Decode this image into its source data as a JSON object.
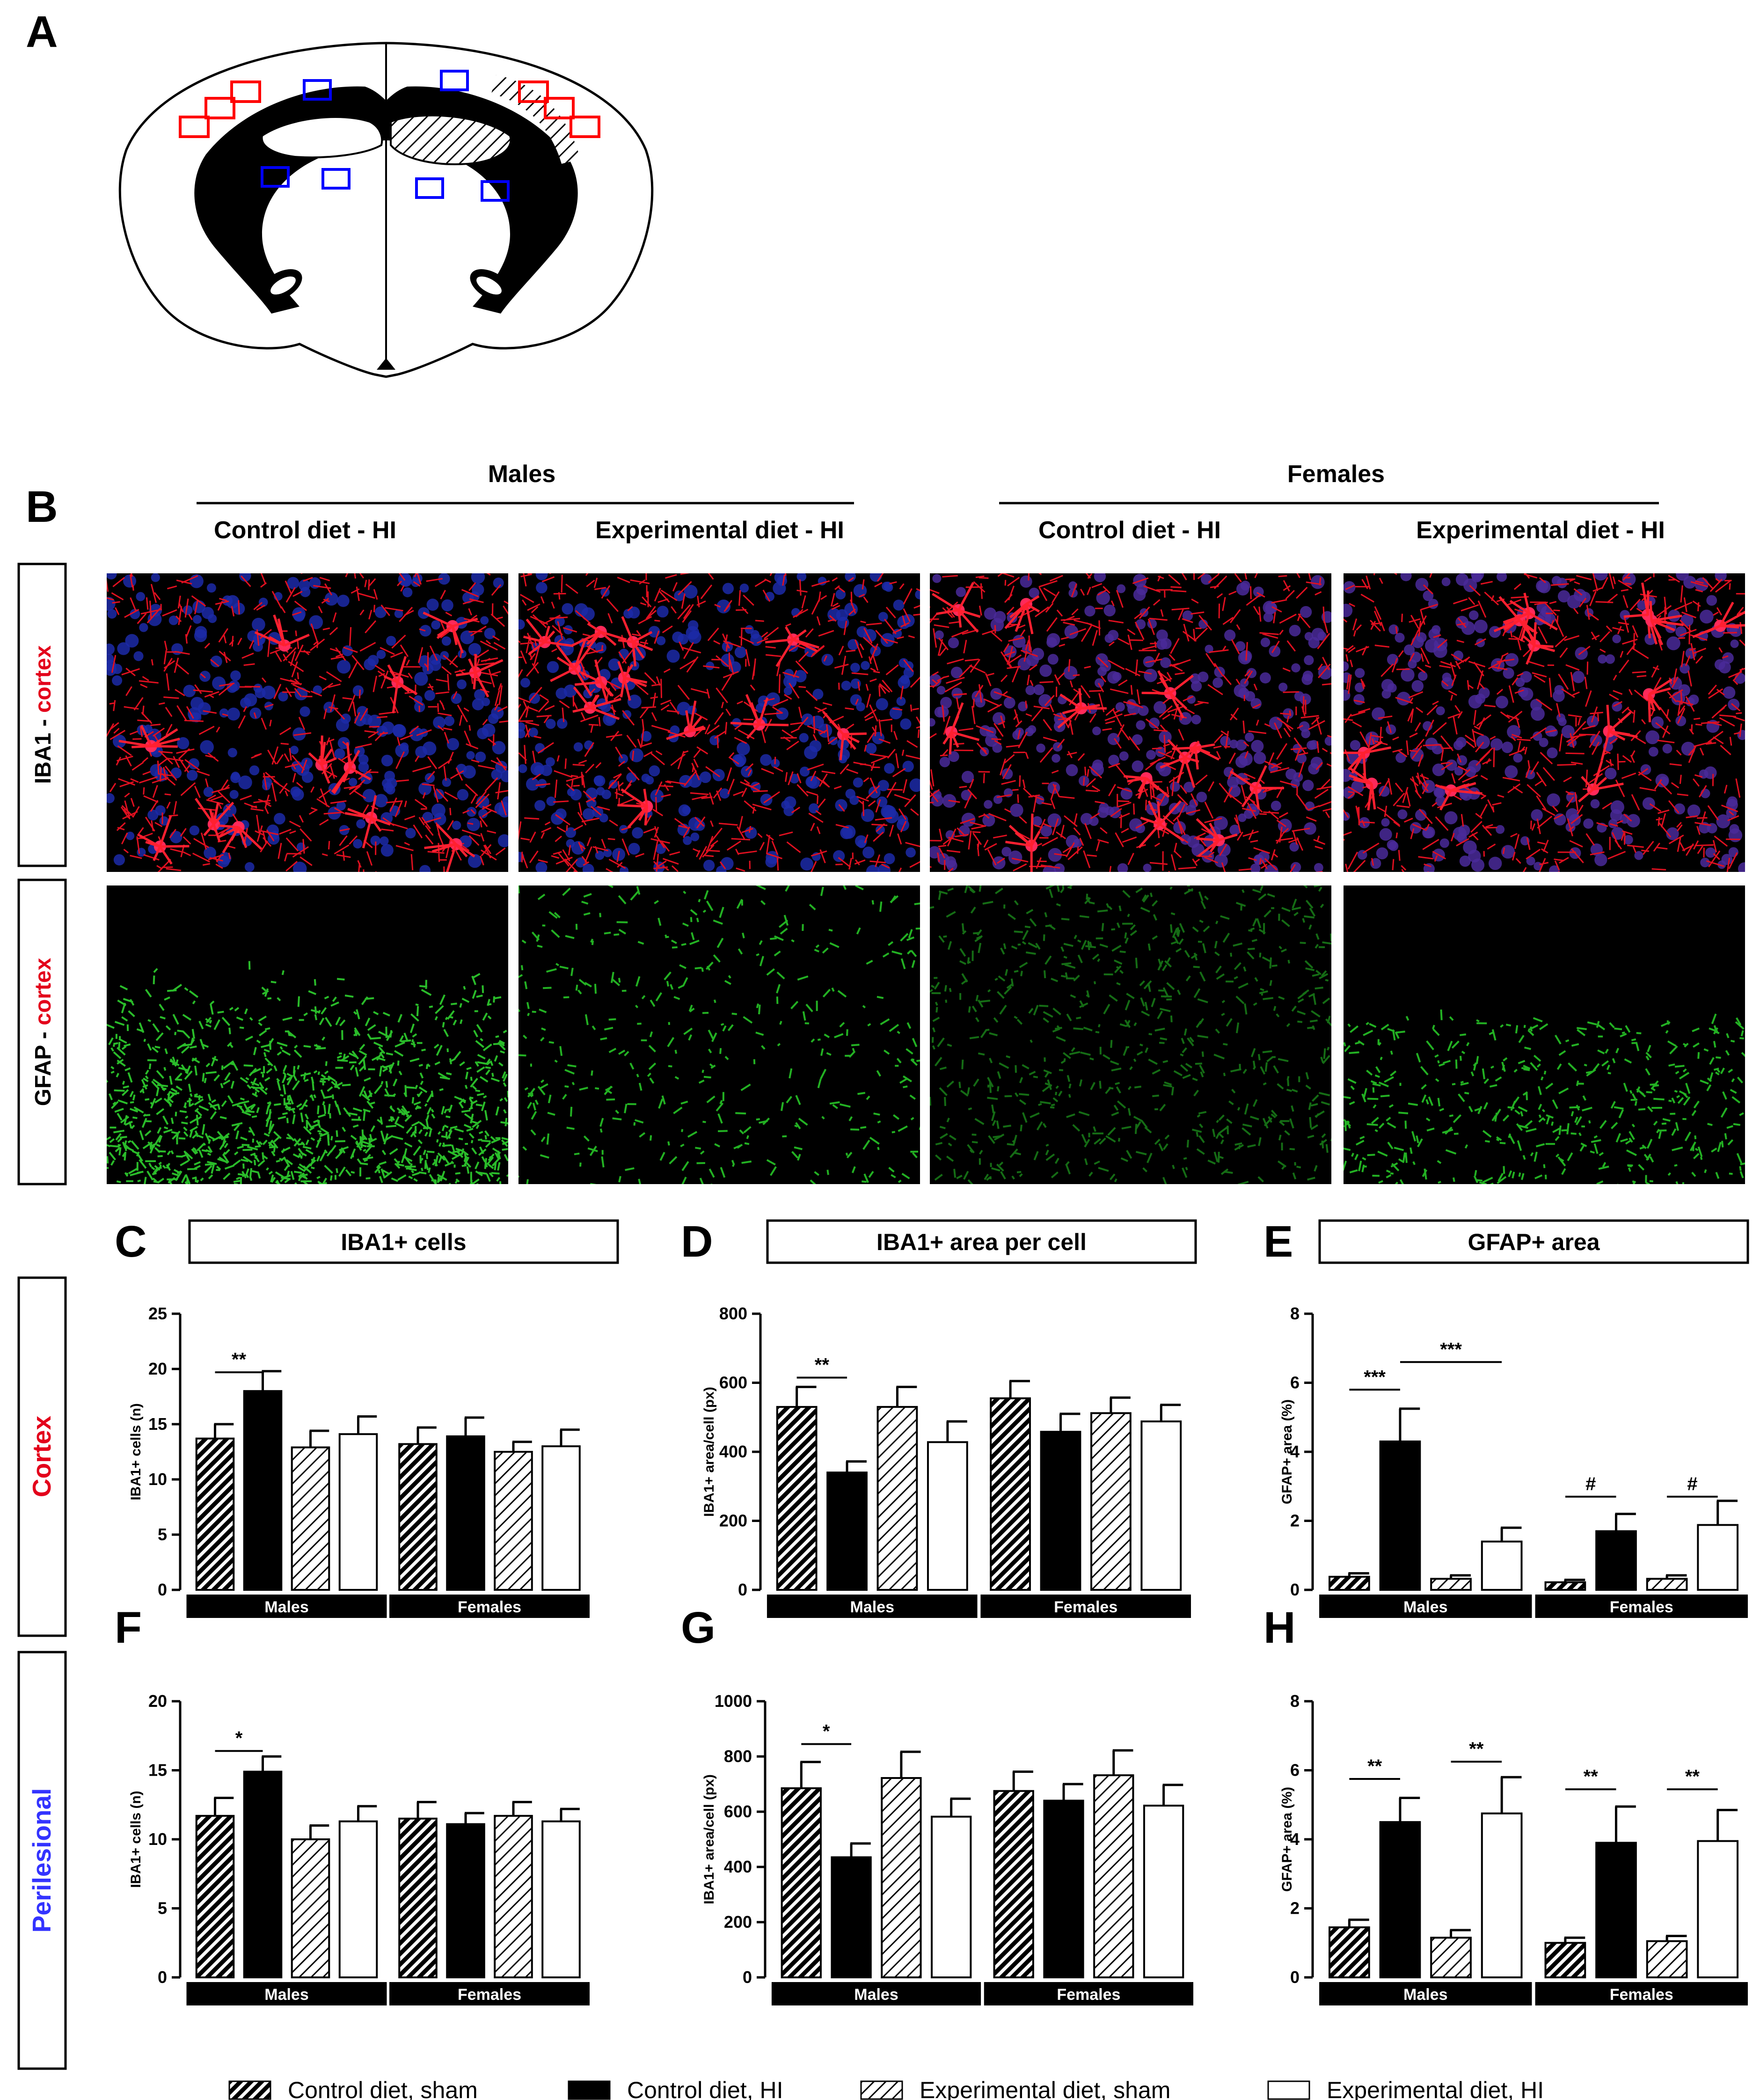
{
  "panel_letters": {
    "A": "A",
    "B": "B",
    "C": "C",
    "D": "D",
    "E": "E",
    "F": "F",
    "G": "G",
    "H": "H"
  },
  "column_headers": {
    "males": "Males",
    "females": "Females",
    "cols": [
      "Control diet - HI",
      "Experimental diet - HI",
      "Control diet - HI",
      "Experimental diet - HI"
    ]
  },
  "row_labels": {
    "iba1_prefix": "IBA1 - ",
    "iba1_suffix": "cortex",
    "gfap_prefix": "GFAP - ",
    "gfap_suffix": "cortex",
    "cortex": "Cortex",
    "perilesional": "Perilesional"
  },
  "colors": {
    "red": "#e3001b",
    "blue": "#3333ff",
    "red_box": "#ff0000",
    "blue_box": "#0000ff"
  },
  "legend": [
    "Control diet, sham",
    "Control diet, HI",
    "Experimental diet, sham",
    "Experimental diet, HI"
  ],
  "chart_data": [
    {
      "id": "C",
      "type": "bar",
      "title": "IBA1+ cells",
      "ylabel": "IBA1+ cells (n)",
      "ylim": [
        0,
        25
      ],
      "yticks": [
        0,
        5,
        10,
        15,
        20,
        25
      ],
      "groups": [
        "Males",
        "Females"
      ],
      "series": [
        {
          "name": "Control diet, sham",
          "values": [
            13.7,
            13.2
          ],
          "errors": [
            1.3,
            1.5
          ]
        },
        {
          "name": "Control diet, HI",
          "values": [
            18.0,
            13.9
          ],
          "errors": [
            1.8,
            1.7
          ]
        },
        {
          "name": "Experimental diet, sham",
          "values": [
            12.9,
            12.5
          ],
          "errors": [
            1.5,
            0.9
          ]
        },
        {
          "name": "Experimental diet, HI",
          "values": [
            14.1,
            13.0
          ],
          "errors": [
            1.6,
            1.5
          ]
        }
      ],
      "annotations": [
        {
          "text": "**",
          "group": 0,
          "from": 0,
          "to": 1,
          "y": 19.7
        }
      ]
    },
    {
      "id": "D",
      "type": "bar",
      "title": "IBA1+ area per cell",
      "ylabel": "IBA1+ area/cell (px)",
      "ylim": [
        0,
        800
      ],
      "yticks": [
        0,
        200,
        400,
        600,
        800
      ],
      "groups": [
        "Males",
        "Females"
      ],
      "series": [
        {
          "name": "Control diet, sham",
          "values": [
            530,
            555
          ],
          "errors": [
            58,
            50
          ]
        },
        {
          "name": "Control diet, HI",
          "values": [
            340,
            458
          ],
          "errors": [
            32,
            52
          ]
        },
        {
          "name": "Experimental diet, sham",
          "values": [
            530,
            512
          ],
          "errors": [
            58,
            45
          ]
        },
        {
          "name": "Experimental diet, HI",
          "values": [
            428,
            488
          ],
          "errors": [
            60,
            48
          ]
        }
      ],
      "annotations": [
        {
          "text": "**",
          "group": 0,
          "from": 0,
          "to": 1,
          "y": 615
        }
      ]
    },
    {
      "id": "E",
      "type": "bar",
      "title": "GFAP+ area",
      "ylabel": "GFAP+ area (%)",
      "ylim": [
        0,
        8
      ],
      "yticks": [
        0,
        2,
        4,
        6,
        8
      ],
      "groups": [
        "Males",
        "Females"
      ],
      "series": [
        {
          "name": "Control diet, sham",
          "values": [
            0.38,
            0.22
          ],
          "errors": [
            0.1,
            0.07
          ]
        },
        {
          "name": "Control diet, HI",
          "values": [
            4.3,
            1.7
          ],
          "errors": [
            0.95,
            0.5
          ]
        },
        {
          "name": "Experimental diet, sham",
          "values": [
            0.32,
            0.32
          ],
          "errors": [
            0.1,
            0.1
          ]
        },
        {
          "name": "Experimental diet, HI",
          "values": [
            1.4,
            1.88
          ],
          "errors": [
            0.4,
            0.7
          ]
        }
      ],
      "annotations": [
        {
          "text": "***",
          "group": 0,
          "from": 0,
          "to": 1,
          "y": 5.8
        },
        {
          "text": "***",
          "group": 0,
          "from": 1,
          "to": 3,
          "y": 6.6
        },
        {
          "text": "#",
          "group": 1,
          "from": 0,
          "to": 1,
          "y": 2.7
        },
        {
          "text": "#",
          "group": 1,
          "from": 2,
          "to": 3,
          "y": 2.7
        }
      ]
    },
    {
      "id": "F",
      "type": "bar",
      "title": "",
      "ylabel": "IBA1+ cells (n)",
      "ylim": [
        0,
        20
      ],
      "yticks": [
        0,
        5,
        10,
        15,
        20
      ],
      "groups": [
        "Males",
        "Females"
      ],
      "series": [
        {
          "name": "Control diet, sham",
          "values": [
            11.7,
            11.5
          ],
          "errors": [
            1.3,
            1.2
          ]
        },
        {
          "name": "Control diet, HI",
          "values": [
            14.9,
            11.1
          ],
          "errors": [
            1.1,
            0.8
          ]
        },
        {
          "name": "Experimental diet, sham",
          "values": [
            10.0,
            11.7
          ],
          "errors": [
            1.0,
            1.0
          ]
        },
        {
          "name": "Experimental diet, HI",
          "values": [
            11.3,
            11.3
          ],
          "errors": [
            1.1,
            0.9
          ]
        }
      ],
      "annotations": [
        {
          "text": "*",
          "group": 0,
          "from": 0,
          "to": 1,
          "y": 16.4
        }
      ]
    },
    {
      "id": "G",
      "type": "bar",
      "title": "",
      "ylabel": "IBA1+ area/cell (px)",
      "ylim": [
        0,
        1000
      ],
      "yticks": [
        0,
        200,
        400,
        600,
        800,
        1000
      ],
      "groups": [
        "Males",
        "Females"
      ],
      "series": [
        {
          "name": "Control diet, sham",
          "values": [
            685,
            675
          ],
          "errors": [
            95,
            70
          ]
        },
        {
          "name": "Control diet, HI",
          "values": [
            435,
            640
          ],
          "errors": [
            50,
            60
          ]
        },
        {
          "name": "Experimental diet, sham",
          "values": [
            722,
            732
          ],
          "errors": [
            95,
            90
          ]
        },
        {
          "name": "Experimental diet, HI",
          "values": [
            582,
            622
          ],
          "errors": [
            65,
            75
          ]
        }
      ],
      "annotations": [
        {
          "text": "*",
          "group": 0,
          "from": 0,
          "to": 1,
          "y": 845
        }
      ]
    },
    {
      "id": "H",
      "type": "bar",
      "title": "",
      "ylabel": "GFAP+ area (%)",
      "ylim": [
        0,
        8
      ],
      "yticks": [
        0,
        2,
        4,
        6,
        8
      ],
      "groups": [
        "Males",
        "Females"
      ],
      "series": [
        {
          "name": "Control diet, sham",
          "values": [
            1.45,
            1.0
          ],
          "errors": [
            0.22,
            0.15
          ]
        },
        {
          "name": "Control diet, HI",
          "values": [
            4.5,
            3.9
          ],
          "errors": [
            0.7,
            1.05
          ]
        },
        {
          "name": "Experimental diet, sham",
          "values": [
            1.15,
            1.05
          ],
          "errors": [
            0.22,
            0.15
          ]
        },
        {
          "name": "Experimental diet, HI",
          "values": [
            4.75,
            3.95
          ],
          "errors": [
            1.05,
            0.9
          ]
        }
      ],
      "annotations": [
        {
          "text": "**",
          "group": 0,
          "from": 0,
          "to": 1,
          "y": 5.75
        },
        {
          "text": "**",
          "group": 0,
          "from": 2,
          "to": 3,
          "y": 6.25
        },
        {
          "text": "**",
          "group": 1,
          "from": 0,
          "to": 1,
          "y": 5.45
        },
        {
          "text": "**",
          "group": 1,
          "from": 2,
          "to": 3,
          "y": 5.45
        }
      ]
    }
  ]
}
